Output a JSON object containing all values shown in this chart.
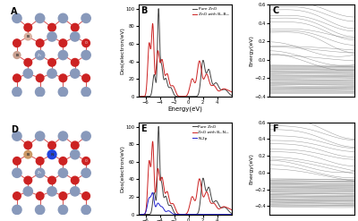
{
  "panel_label_fontsize": 7,
  "background_color": "#ffffff",
  "crystal_bg": "#f5f2ee",
  "dos_b": {
    "xlim": [
      -7,
      6
    ],
    "ylim": [
      0,
      105
    ],
    "xlabel": "Energy(eV)",
    "ylabel": "Dos(electron/eV)",
    "legend1": "Pure ZnO",
    "legend2": "ZnO with B₀-Bₒₙ",
    "color1": "#444444",
    "color2": "#cc2222"
  },
  "dos_e": {
    "xlim": [
      -7,
      6
    ],
    "ylim": [
      0,
      105
    ],
    "xlabel": "Energy(eV)",
    "ylabel": "Dos(electron/eV)",
    "legend1": "Pure ZnO",
    "legend2": "ZnO with B₀-Nₒₙ",
    "legend3": "N-2p",
    "color1": "#444444",
    "color2": "#cc2222",
    "color3": "#2222cc"
  },
  "band_c": {
    "ylim": [
      -0.4,
      0.6
    ],
    "ylabel": "Energy(eV)",
    "xlim": [
      0,
      4
    ],
    "yticks": [
      -0.4,
      -0.2,
      0.0,
      0.2,
      0.4,
      0.6
    ],
    "color": "#777777"
  },
  "band_f": {
    "ylim": [
      -0.5,
      0.6
    ],
    "ylabel": "Energy(eV)",
    "xlim": [
      0,
      4
    ],
    "yticks": [
      -0.4,
      -0.2,
      0.0,
      0.2,
      0.4,
      0.6
    ],
    "color": "#777777"
  },
  "zn_color": "#8899bb",
  "o_color": "#cc2222",
  "n_color": "#2244dd",
  "b_color": "#cc9966",
  "bond_color": "#cc2222"
}
